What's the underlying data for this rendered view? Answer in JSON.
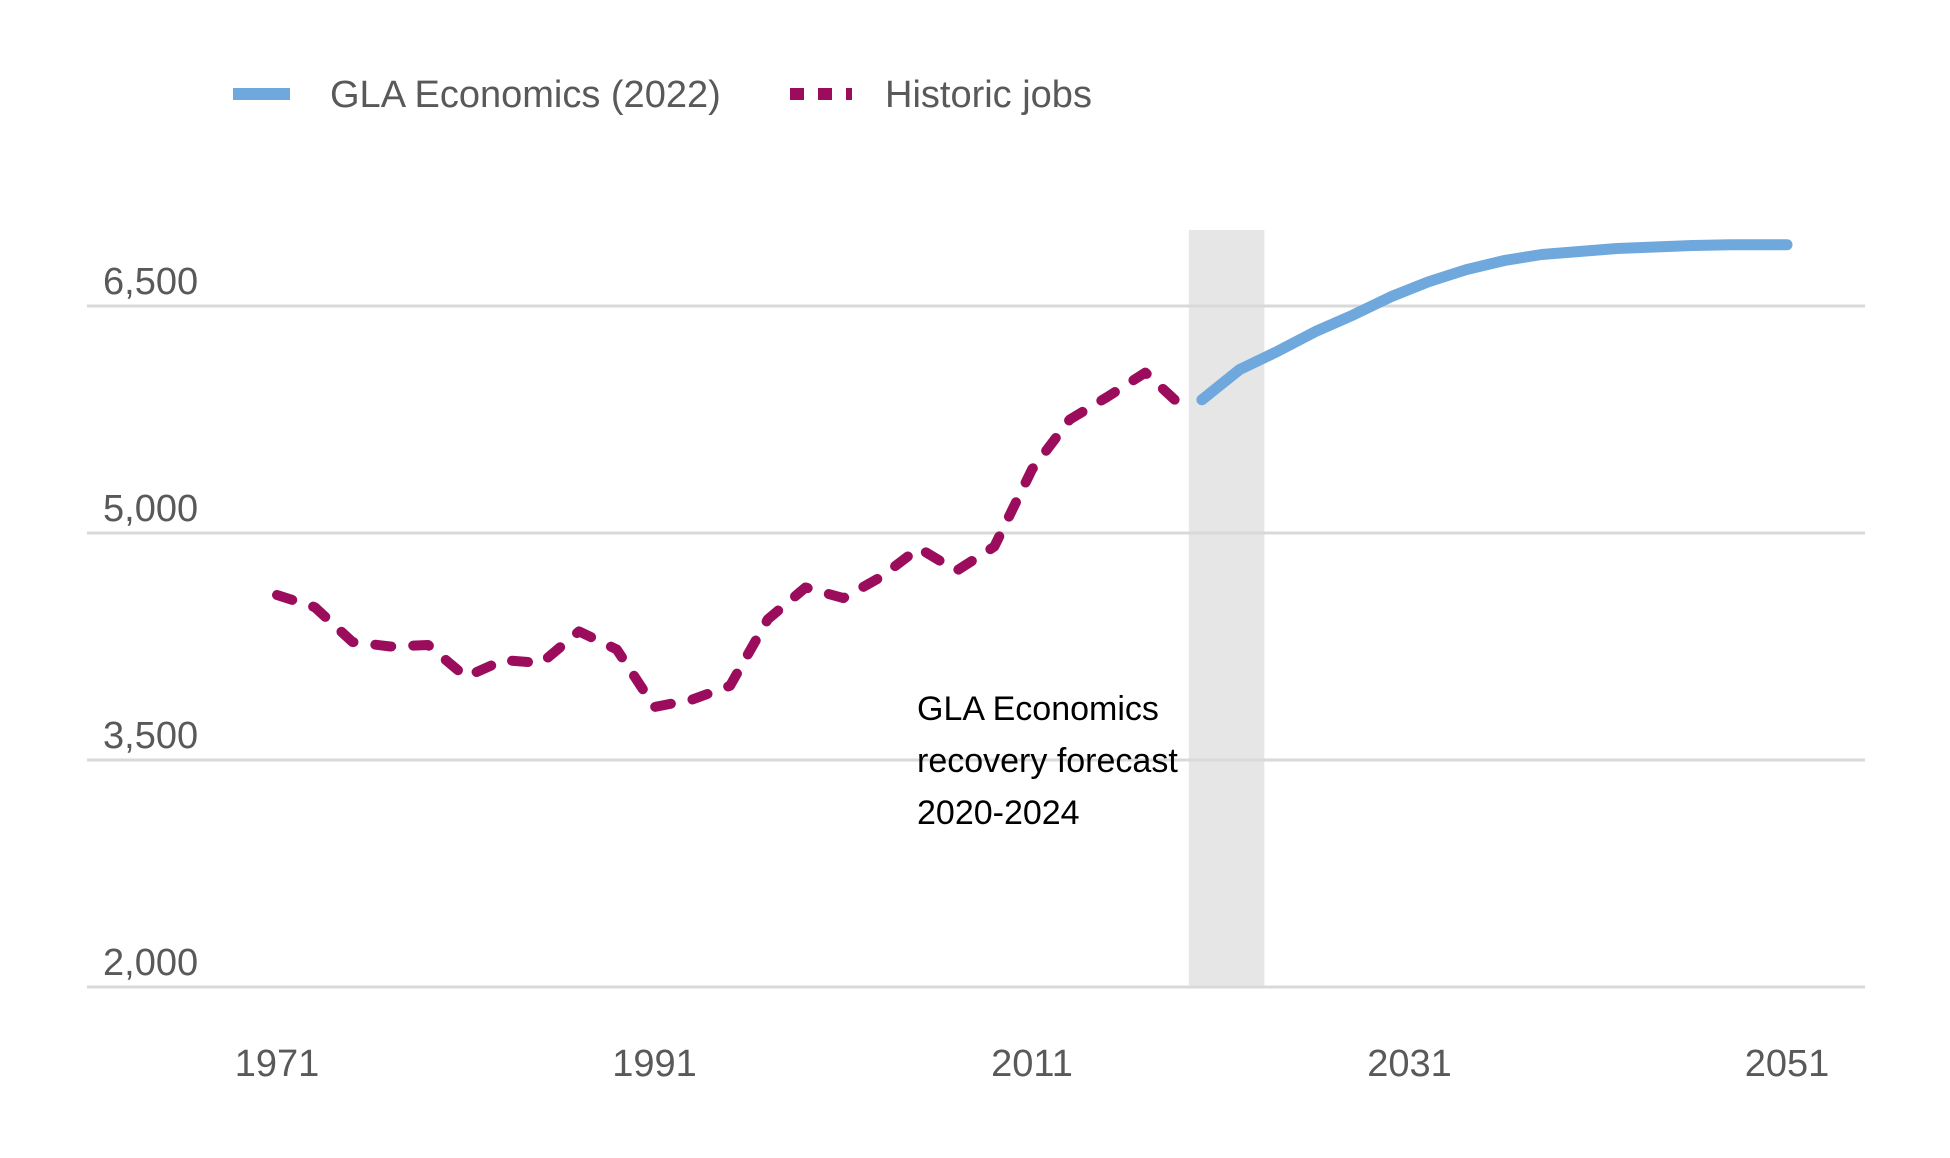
{
  "chart_data": {
    "type": "line",
    "title": "",
    "xlabel": "",
    "ylabel": "",
    "xlim": [
      1971,
      2051
    ],
    "ylim": [
      2000,
      6500
    ],
    "x_ticks": [
      "1971",
      "1991",
      "2011",
      "2031",
      "2051"
    ],
    "y_ticks": [
      "2,000",
      "3,500",
      "5,000",
      "6,500"
    ],
    "grid": "horizontal",
    "legend_position": "top-left",
    "shaded_region": [
      2020,
      2024
    ],
    "annotation": [
      "GLA Economics",
      "recovery forecast",
      "2020-2024"
    ],
    "series": [
      {
        "name": "Historic jobs",
        "style": "dotted",
        "color": "#9b0d5c",
        "x": [
          1971,
          1973,
          1975,
          1977,
          1979,
          1981,
          1983,
          1985,
          1987,
          1989,
          1991,
          1993,
          1995,
          1997,
          1999,
          2001,
          2003,
          2005,
          2007,
          2009,
          2011,
          2013,
          2015,
          2017,
          2019
        ],
        "y": [
          4590,
          4510,
          4280,
          4250,
          4260,
          4050,
          4160,
          4140,
          4350,
          4230,
          3850,
          3900,
          3990,
          4430,
          4640,
          4570,
          4710,
          4900,
          4750,
          4910,
          5420,
          5750,
          5900,
          6060,
          5830
        ]
      },
      {
        "name": "GLA Economics (2022)",
        "style": "solid",
        "color": "#6fa8dc",
        "x": [
          2020,
          2022,
          2024,
          2026,
          2028,
          2030,
          2032,
          2034,
          2036,
          2038,
          2040,
          2042,
          2044,
          2046,
          2048,
          2050,
          2051
        ],
        "y": [
          5880,
          6080,
          6200,
          6330,
          6440,
          6560,
          6660,
          6740,
          6800,
          6840,
          6860,
          6880,
          6890,
          6900,
          6905,
          6905,
          6905
        ]
      }
    ]
  }
}
